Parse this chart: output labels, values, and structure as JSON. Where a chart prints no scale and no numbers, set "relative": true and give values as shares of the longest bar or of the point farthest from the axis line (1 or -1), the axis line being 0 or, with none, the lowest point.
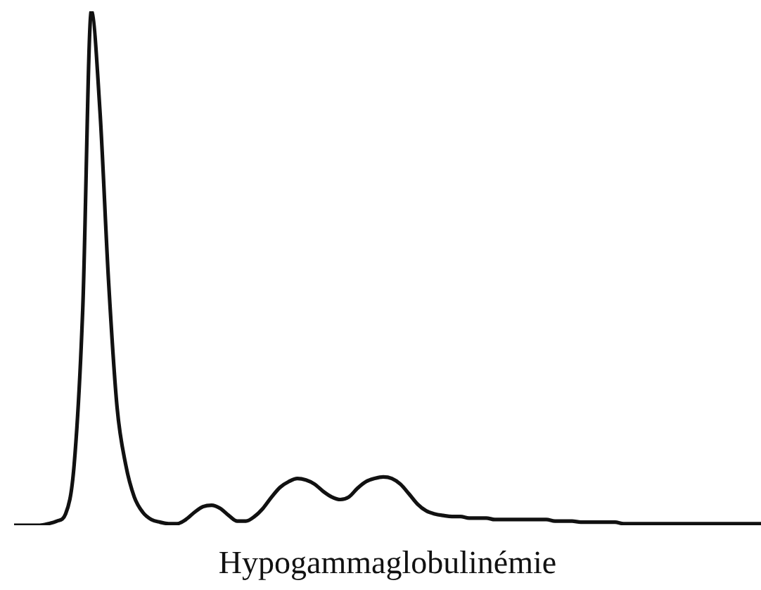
{
  "chart_data": {
    "type": "line",
    "relative": true,
    "xlabel": "Hypogammaglobulinémie",
    "marker": "none",
    "grid": false,
    "legend": false,
    "categories": [
      null,
      null,
      null,
      null,
      null,
      null,
      null,
      null,
      null,
      null,
      null,
      null,
      null,
      null,
      null,
      null,
      null,
      null,
      null,
      null,
      null,
      null,
      null,
      null,
      null,
      null,
      null,
      null,
      null,
      null,
      null,
      null,
      null,
      null,
      null,
      null,
      null,
      null,
      null,
      null,
      null,
      null,
      null,
      null,
      null,
      null,
      null,
      null,
      null,
      null,
      null,
      null,
      null,
      null,
      null,
      null,
      null,
      null,
      null,
      null,
      null,
      null,
      null,
      null,
      null,
      null,
      null,
      null,
      null,
      null,
      null,
      null,
      null,
      null,
      null,
      null,
      null,
      null,
      null,
      null,
      null,
      null,
      null,
      null,
      null,
      null,
      null,
      null
    ],
    "series": [
      {
        "color": "#111111",
        "values": [
          0,
          0,
          0,
          0,
          0.003,
          0.008,
          0.022,
          0.118,
          0.421,
          1,
          0.807,
          0.477,
          0.229,
          0.118,
          0.055,
          0.025,
          0.011,
          0.006,
          0.003,
          0.003,
          0.011,
          0.025,
          0.036,
          0.039,
          0.033,
          0.019,
          0.008,
          0.008,
          0.017,
          0.033,
          0.055,
          0.074,
          0.085,
          0.091,
          0.088,
          0.08,
          0.066,
          0.055,
          0.05,
          0.055,
          0.072,
          0.085,
          0.091,
          0.094,
          0.091,
          0.08,
          0.061,
          0.041,
          0.028,
          0.022,
          0.019,
          0.017,
          0.017,
          0.014,
          0.014,
          0.014,
          0.011,
          0.011,
          0.011,
          0.011,
          0.011,
          0.011,
          0.011,
          0.008,
          0.008,
          0.008,
          0.006,
          0.006,
          0.006,
          0.006,
          0.006,
          0.003,
          0.003,
          0.003,
          0.003,
          0.003,
          0.003,
          0.003,
          0.003,
          0.003,
          0.003,
          0.003,
          0.003,
          0.003,
          0.003,
          0.003,
          0.003,
          0.003
        ]
      }
    ]
  }
}
